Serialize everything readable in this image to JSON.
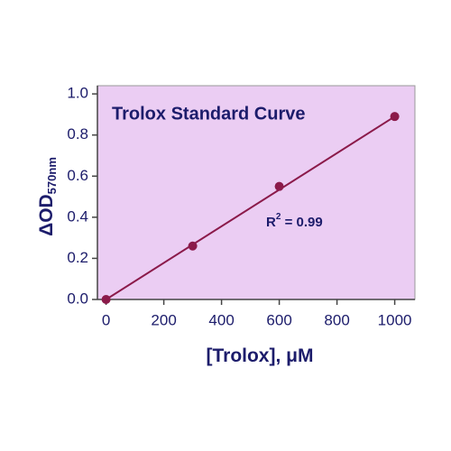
{
  "chart_data": {
    "type": "scatter",
    "title": "Trolox Standard Curve",
    "x_label": {
      "text": "[Trolox], ",
      "unit": "μM"
    },
    "y_label": {
      "text": "ΔOD",
      "sub": "570nm"
    },
    "annotation": {
      "text": "R",
      "sup": "2",
      "rest": " = 0.99"
    },
    "x": [
      0,
      300,
      600,
      1000
    ],
    "values": [
      0.0,
      0.26,
      0.55,
      0.89
    ],
    "trendline": {
      "x": [
        0,
        1000
      ],
      "y": [
        0.0,
        0.89
      ]
    },
    "color": "#8b1a4a",
    "background": "#ebcdf3",
    "xlim": [
      -30,
      1070
    ],
    "ylim": [
      0,
      1.04
    ],
    "xticks": [
      0,
      200,
      400,
      600,
      800,
      1000
    ],
    "yticks": [
      {
        "value": 0,
        "label": "0.0"
      },
      0.2,
      0.4,
      0.6,
      0.8,
      {
        "value": 1,
        "label": "1.0"
      }
    ]
  }
}
